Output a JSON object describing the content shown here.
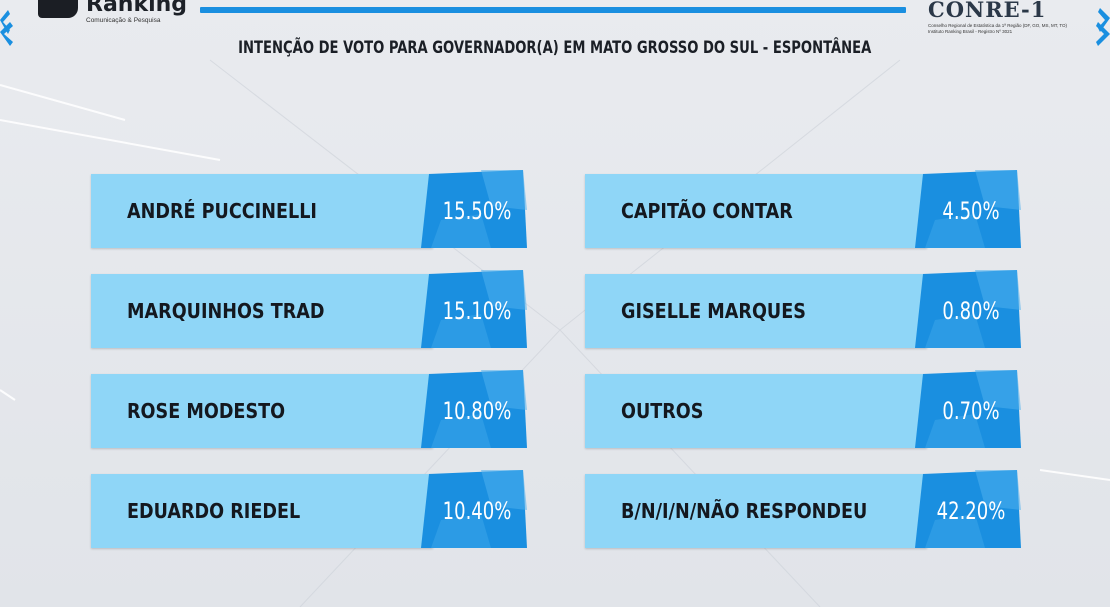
{
  "header": {
    "brand_name": "Ranking",
    "brand_sub": "Comunicação & Pesquisa",
    "conre_title": "CONRE-1",
    "conre_lines": [
      "Conselho Regional de Estatística da 1ª Região (DF, GO, MS, MT, TO)",
      "Instituto Ranking Brasil - Registro Nº 3021"
    ]
  },
  "chart_data": {
    "type": "table",
    "title": "INTENÇÃO DE VOTO PARA GOVERNADOR(A) EM MATO GROSSO DO SUL - ESPONTÂNEA",
    "items": [
      {
        "label": "ANDRÉ PUCCINELLI",
        "value": "15.50%"
      },
      {
        "label": "MARQUINHOS TRAD",
        "value": "15.10%"
      },
      {
        "label": "ROSE MODESTO",
        "value": "10.80%"
      },
      {
        "label": "EDUARDO RIEDEL",
        "value": "10.40%"
      },
      {
        "label": "CAPITÃO CONTAR",
        "value": "4.50%"
      },
      {
        "label": "GISELLE MARQUES",
        "value": "0.80%"
      },
      {
        "label": "OUTROS",
        "value": "0.70%"
      },
      {
        "label": "B/N/I/N/NÃO RESPONDEU",
        "value": "42.20%"
      }
    ]
  },
  "colors": {
    "label_bg": "#8fd6f7",
    "value_bg": "#1a8fe0",
    "value_bg_light": "#4fb1ee",
    "accent_bar": "#1a8fe0"
  }
}
